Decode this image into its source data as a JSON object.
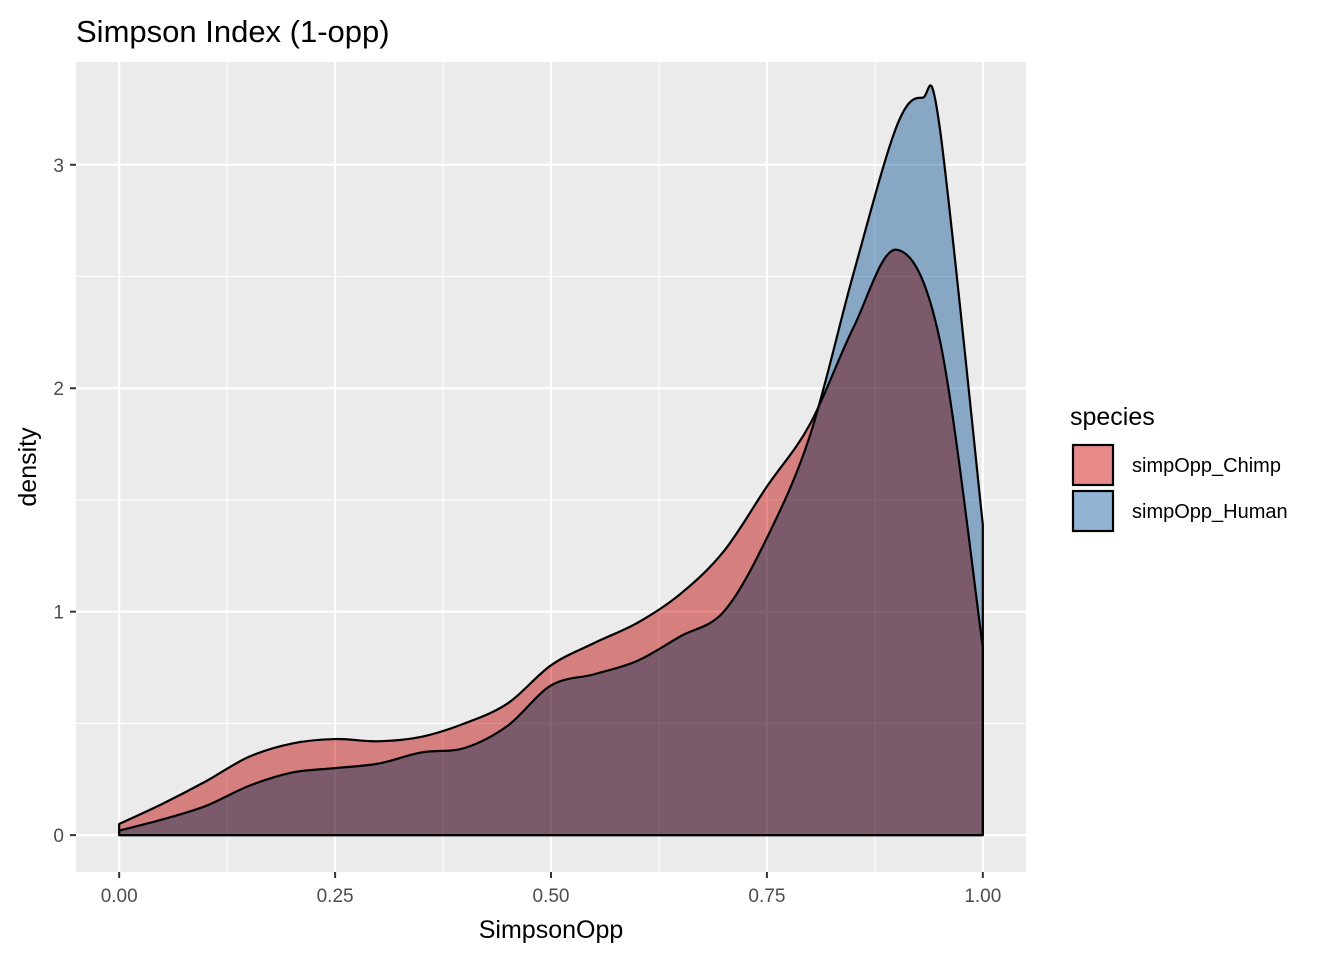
{
  "chart_data": {
    "type": "area",
    "title": "Simpson Index (1-opp)",
    "xlabel": "SimpsonOpp",
    "ylabel": "density",
    "xlim": [
      -0.05,
      1.05
    ],
    "ylim": [
      -0.165,
      3.46
    ],
    "x_ticks": [
      0.0,
      0.25,
      0.5,
      0.75,
      1.0
    ],
    "x_tick_labels": [
      "0.00",
      "0.25",
      "0.50",
      "0.75",
      "1.00"
    ],
    "y_ticks": [
      0,
      1,
      2,
      3
    ],
    "y_tick_labels": [
      "0",
      "1",
      "2",
      "3"
    ],
    "grid": true,
    "legend": {
      "title": "species",
      "position": "right"
    },
    "series": [
      {
        "name": "simpOpp_Chimp",
        "color": "#E88A8A",
        "x": [
          0,
          0.05,
          0.1,
          0.15,
          0.2,
          0.25,
          0.3,
          0.35,
          0.4,
          0.45,
          0.5,
          0.55,
          0.6,
          0.65,
          0.7,
          0.75,
          0.8,
          0.85,
          0.9,
          0.95,
          1.0
        ],
        "y": [
          0.05,
          0.14,
          0.24,
          0.35,
          0.41,
          0.43,
          0.42,
          0.44,
          0.5,
          0.59,
          0.76,
          0.86,
          0.95,
          1.08,
          1.27,
          1.56,
          1.84,
          2.27,
          2.62,
          2.22,
          0.84
        ]
      },
      {
        "name": "simpOpp_Human",
        "color": "#92B5D6",
        "x": [
          0,
          0.05,
          0.1,
          0.15,
          0.2,
          0.25,
          0.3,
          0.35,
          0.4,
          0.45,
          0.5,
          0.55,
          0.6,
          0.65,
          0.7,
          0.75,
          0.8,
          0.85,
          0.9,
          0.93,
          0.95,
          1.0
        ],
        "y": [
          0.02,
          0.07,
          0.13,
          0.22,
          0.28,
          0.3,
          0.32,
          0.37,
          0.39,
          0.49,
          0.67,
          0.72,
          0.78,
          0.89,
          1.0,
          1.33,
          1.79,
          2.51,
          3.17,
          3.3,
          3.17,
          1.39
        ]
      }
    ]
  }
}
